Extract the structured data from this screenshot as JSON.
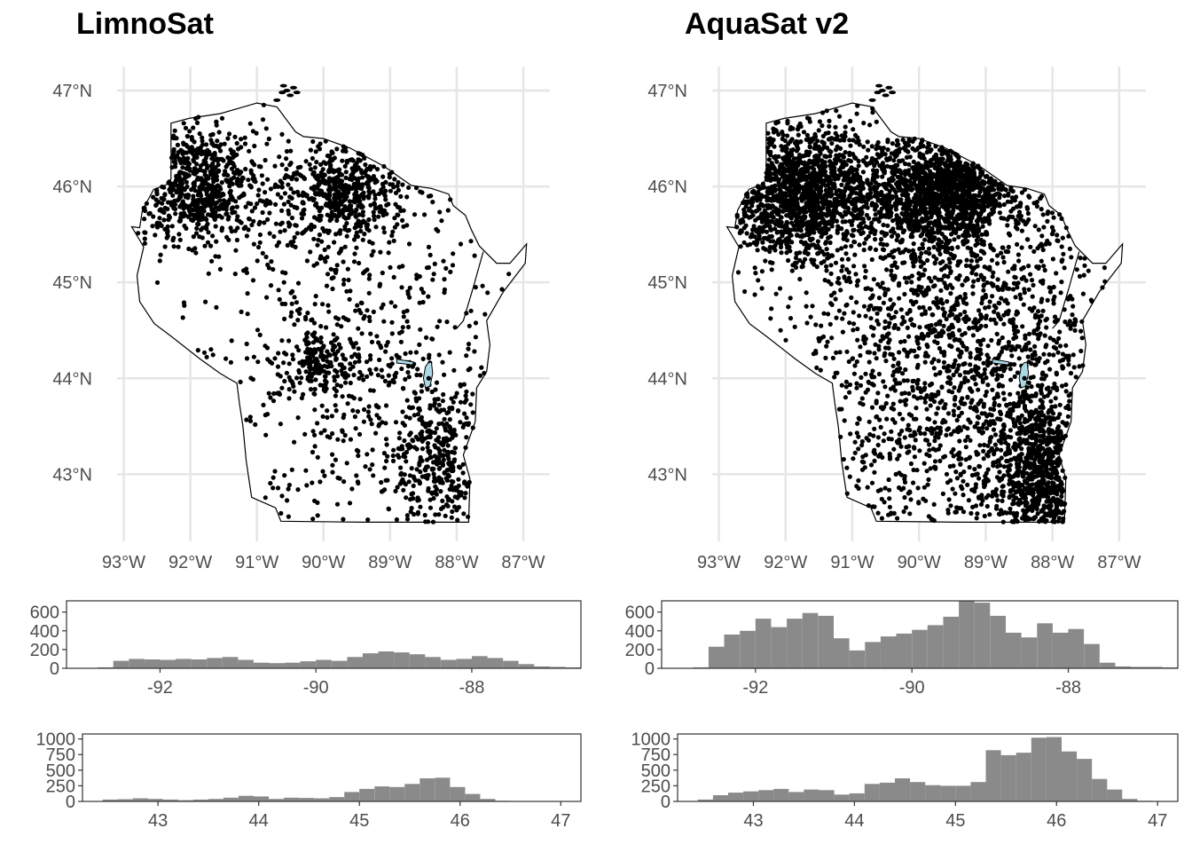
{
  "panels": {
    "left": {
      "title": "LimnoSat"
    },
    "right": {
      "title": "AquaSat v2"
    }
  },
  "chart_data": [
    {
      "type": "scatter",
      "title": "LimnoSat",
      "x_ticks": [
        "93°W",
        "92°W",
        "91°W",
        "90°W",
        "89°W",
        "88°W",
        "87°W"
      ],
      "y_ticks": [
        "47°N",
        "46°N",
        "45°N",
        "44°N",
        "43°N"
      ],
      "xlim": [
        -93.1,
        -86.6
      ],
      "ylim": [
        42.3,
        47.25
      ],
      "grid": true,
      "point_color": "#000000",
      "lake_fill": "#add8e6",
      "density_clusters": [
        {
          "lon": -91.9,
          "lat": 46.0,
          "spread": [
            0.55,
            0.3
          ],
          "share": 0.3
        },
        {
          "lon": -89.7,
          "lat": 45.95,
          "spread": [
            0.45,
            0.25
          ],
          "share": 0.2
        },
        {
          "lon": -90.1,
          "lat": 44.2,
          "spread": [
            0.25,
            0.2
          ],
          "share": 0.06
        },
        {
          "lon": -88.3,
          "lat": 43.1,
          "spread": [
            0.35,
            0.45
          ],
          "share": 0.14
        },
        {
          "lon": -89.5,
          "lat": 44.3,
          "spread": [
            1.2,
            1.3
          ],
          "share": 0.3
        }
      ]
    },
    {
      "type": "scatter",
      "title": "AquaSat v2",
      "x_ticks": [
        "93°W",
        "92°W",
        "91°W",
        "90°W",
        "89°W",
        "88°W",
        "87°W"
      ],
      "y_ticks": [
        "47°N",
        "46°N",
        "45°N",
        "44°N",
        "43°N"
      ],
      "xlim": [
        -93.1,
        -86.6
      ],
      "ylim": [
        42.3,
        47.25
      ],
      "grid": true,
      "point_color": "#000000",
      "lake_fill": "#add8e6",
      "density_clusters": [
        {
          "lon": -91.8,
          "lat": 45.95,
          "spread": [
            0.65,
            0.35
          ],
          "share": 0.25
        },
        {
          "lon": -89.6,
          "lat": 45.95,
          "spread": [
            0.55,
            0.28
          ],
          "share": 0.22
        },
        {
          "lon": -88.1,
          "lat": 43.0,
          "spread": [
            0.4,
            0.5
          ],
          "share": 0.16
        },
        {
          "lon": -89.4,
          "lat": 44.3,
          "spread": [
            1.3,
            1.3
          ],
          "share": 0.37
        }
      ]
    },
    {
      "type": "bar",
      "panel": "LimnoSat longitude histogram",
      "x_ticks": [
        "-92",
        "-90",
        "-88"
      ],
      "y_ticks": [
        "0",
        "200",
        "400",
        "600"
      ],
      "xlim": [
        -93.2,
        -86.6
      ],
      "ylim": [
        0,
        720
      ],
      "bin_width": 0.2,
      "bin_start": -93.0,
      "values": [
        5,
        10,
        80,
        100,
        95,
        90,
        100,
        95,
        110,
        120,
        90,
        60,
        55,
        60,
        75,
        90,
        80,
        120,
        160,
        180,
        170,
        150,
        120,
        90,
        100,
        130,
        110,
        80,
        45,
        20,
        15,
        10,
        5,
        15,
        5,
        5
      ]
    },
    {
      "type": "bar",
      "panel": "AquaSat v2 longitude histogram",
      "x_ticks": [
        "-92",
        "-90",
        "-88"
      ],
      "y_ticks": [
        "0",
        "200",
        "400",
        "600"
      ],
      "xlim": [
        -93.2,
        -86.6
      ],
      "ylim": [
        0,
        720
      ],
      "bin_width": 0.2,
      "bin_start": -93.0,
      "values": [
        5,
        10,
        230,
        360,
        400,
        530,
        440,
        530,
        590,
        560,
        320,
        190,
        280,
        340,
        370,
        410,
        460,
        550,
        720,
        700,
        560,
        380,
        330,
        480,
        380,
        420,
        260,
        60,
        20,
        15,
        15,
        10,
        5,
        5
      ]
    },
    {
      "type": "bar",
      "panel": "LimnoSat latitude histogram",
      "x_ticks": [
        "43",
        "44",
        "45",
        "46",
        "47"
      ],
      "y_ticks": [
        "0",
        "250",
        "500",
        "750",
        "1000"
      ],
      "xlim": [
        42.25,
        47.2
      ],
      "ylim": [
        0,
        1080
      ],
      "bin_width": 0.15,
      "bin_start": 42.45,
      "values": [
        30,
        35,
        50,
        40,
        30,
        20,
        30,
        40,
        60,
        90,
        80,
        40,
        60,
        55,
        50,
        70,
        150,
        200,
        240,
        230,
        280,
        370,
        380,
        230,
        120,
        40,
        10,
        5
      ]
    },
    {
      "type": "bar",
      "panel": "AquaSat v2 latitude histogram",
      "x_ticks": [
        "43",
        "44",
        "45",
        "46",
        "47"
      ],
      "y_ticks": [
        "0",
        "250",
        "500",
        "750",
        "1000"
      ],
      "xlim": [
        42.25,
        47.2
      ],
      "ylim": [
        0,
        1080
      ],
      "bin_width": 0.15,
      "bin_start": 42.45,
      "values": [
        30,
        100,
        140,
        160,
        180,
        200,
        150,
        190,
        180,
        110,
        130,
        280,
        300,
        370,
        310,
        260,
        250,
        250,
        310,
        820,
        740,
        780,
        1020,
        1030,
        800,
        680,
        360,
        190,
        40,
        10,
        5
      ]
    }
  ]
}
